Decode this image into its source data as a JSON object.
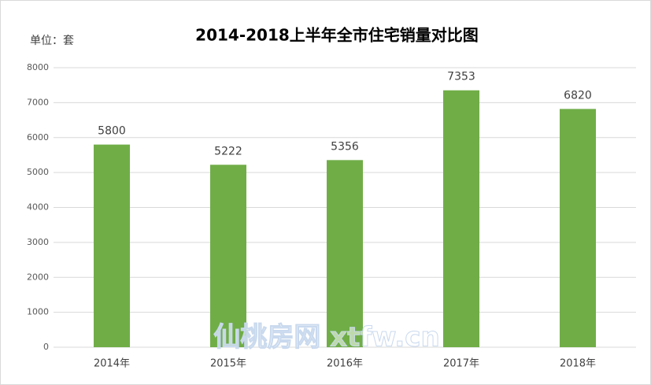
{
  "chart_data": {
    "type": "bar",
    "title": "2014-2018上半年全市住宅销量对比图",
    "unit_label": "单位：套",
    "categories": [
      "2014年",
      "2015年",
      "2016年",
      "2017年",
      "2018年"
    ],
    "values": [
      5800,
      5222,
      5356,
      7353,
      6820
    ],
    "color": "#70ad47",
    "ylim": [
      0,
      8000
    ],
    "yticks": [
      0,
      1000,
      2000,
      3000,
      4000,
      5000,
      6000,
      7000,
      8000
    ],
    "grid": true,
    "watermark": "仙桃房网 xtfw.cn"
  }
}
